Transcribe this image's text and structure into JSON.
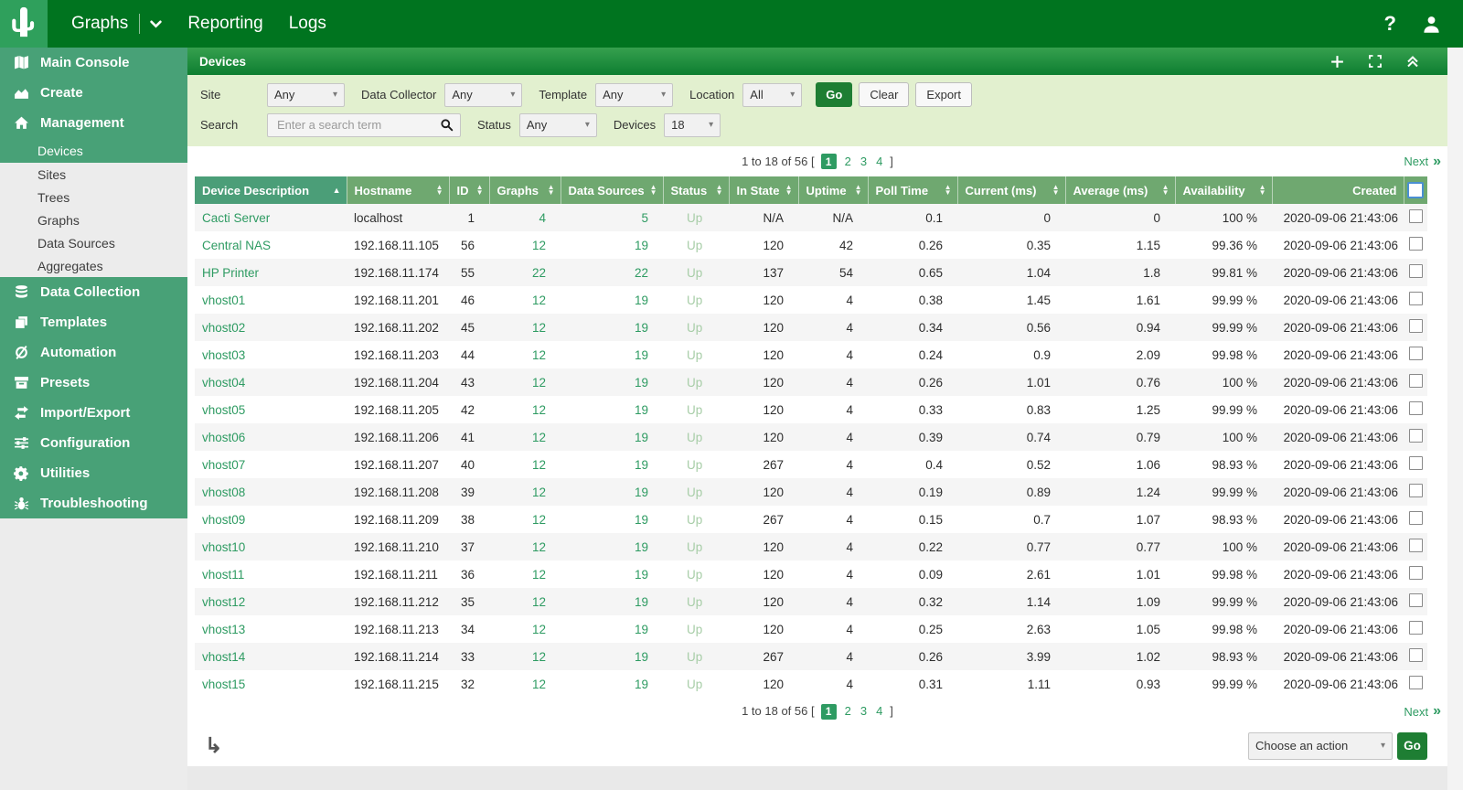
{
  "colors": {
    "navbar_green": "#00741f",
    "logo_green": "#2fa05c",
    "sidebar_green": "#48a177",
    "panel_top": "#36a04e",
    "panel_bottom": "#0e7e31",
    "filter_bg": "#e2f0cf",
    "table_header_green": "#6fa870",
    "table_header_sorted": "#4b9e78",
    "accent_green": "#2e9b62",
    "status_up": "#a7cda7",
    "go_green": "#1e7e33"
  },
  "navbar": {
    "tabs": [
      "Graphs",
      "Reporting",
      "Logs"
    ],
    "help_glyph": "?"
  },
  "sidebar": {
    "items": [
      {
        "label": "Main Console",
        "icon": "map-icon",
        "type": "section"
      },
      {
        "label": "Create",
        "icon": "area-chart-icon",
        "type": "section"
      },
      {
        "label": "Management",
        "icon": "home-icon",
        "type": "section"
      },
      {
        "label": "Devices",
        "type": "sub",
        "selected": true
      },
      {
        "label": "Sites",
        "type": "sub"
      },
      {
        "label": "Trees",
        "type": "sub"
      },
      {
        "label": "Graphs",
        "type": "sub"
      },
      {
        "label": "Data Sources",
        "type": "sub"
      },
      {
        "label": "Aggregates",
        "type": "sub"
      },
      {
        "label": "Data Collection",
        "icon": "database-icon",
        "type": "section"
      },
      {
        "label": "Templates",
        "icon": "layers-icon",
        "type": "section"
      },
      {
        "label": "Automation",
        "icon": "automation-icon",
        "type": "section"
      },
      {
        "label": "Presets",
        "icon": "archive-icon",
        "type": "section"
      },
      {
        "label": "Import/Export",
        "icon": "import-export-icon",
        "type": "section"
      },
      {
        "label": "Configuration",
        "icon": "sliders-icon",
        "type": "section"
      },
      {
        "label": "Utilities",
        "icon": "gears-icon",
        "type": "section"
      },
      {
        "label": "Troubleshooting",
        "icon": "bug-icon",
        "type": "section"
      }
    ]
  },
  "panel": {
    "title": "Devices",
    "filters": {
      "row1": [
        {
          "label": "Site",
          "value": "Any"
        },
        {
          "label": "Data Collector",
          "value": "Any"
        },
        {
          "label": "Template",
          "value": "Any"
        },
        {
          "label": "Location",
          "value": "All"
        }
      ],
      "buttons": {
        "go": "Go",
        "clear": "Clear",
        "export": "Export"
      },
      "search": {
        "label": "Search",
        "placeholder": "Enter a search term"
      },
      "status": {
        "label": "Status",
        "value": "Any"
      },
      "devices": {
        "label": "Devices",
        "value": "18"
      }
    }
  },
  "pagination": {
    "prefix": "1 to 18 of 56 [",
    "pages": [
      "1",
      "2",
      "3",
      "4"
    ],
    "current": "1",
    "suffix": "]",
    "next": "Next",
    "next_glyph": "»"
  },
  "table": {
    "columns": [
      {
        "key": "description",
        "label": "Device Description",
        "sort": "asc",
        "align": "left",
        "style": "link"
      },
      {
        "key": "hostname",
        "label": "Hostname",
        "sort": "both",
        "align": "left"
      },
      {
        "key": "id",
        "label": "ID",
        "sort": "both",
        "align": "right"
      },
      {
        "key": "graphs",
        "label": "Graphs",
        "sort": "both",
        "align": "right",
        "style": "link"
      },
      {
        "key": "data_sources",
        "label": "Data Sources",
        "sort": "both",
        "align": "right",
        "style": "link"
      },
      {
        "key": "status",
        "label": "Status",
        "sort": "both",
        "align": "left",
        "style": "status"
      },
      {
        "key": "in_state",
        "label": "In State",
        "sort": "both",
        "align": "right"
      },
      {
        "key": "uptime",
        "label": "Uptime",
        "sort": "both",
        "align": "right"
      },
      {
        "key": "poll_time",
        "label": "Poll Time",
        "sort": "both",
        "align": "right"
      },
      {
        "key": "current_ms",
        "label": "Current (ms)",
        "sort": "both",
        "align": "right"
      },
      {
        "key": "average_ms",
        "label": "Average (ms)",
        "sort": "both",
        "align": "right"
      },
      {
        "key": "availability",
        "label": "Availability",
        "sort": "both",
        "align": "right"
      },
      {
        "key": "created",
        "label": "Created",
        "sort": "none",
        "align": "right"
      }
    ],
    "rows": [
      {
        "description": "Cacti Server",
        "hostname": "localhost",
        "id": "1",
        "graphs": "4",
        "data_sources": "5",
        "status": "Up",
        "in_state": "N/A",
        "uptime": "N/A",
        "poll_time": "0.1",
        "current_ms": "0",
        "average_ms": "0",
        "availability": "100 %",
        "created": "2020-09-06 21:43:06"
      },
      {
        "description": "Central NAS",
        "hostname": "192.168.11.105",
        "id": "56",
        "graphs": "12",
        "data_sources": "19",
        "status": "Up",
        "in_state": "120",
        "uptime": "42",
        "poll_time": "0.26",
        "current_ms": "0.35",
        "average_ms": "1.15",
        "availability": "99.36 %",
        "created": "2020-09-06 21:43:06"
      },
      {
        "description": "HP Printer",
        "hostname": "192.168.11.174",
        "id": "55",
        "graphs": "22",
        "data_sources": "22",
        "status": "Up",
        "in_state": "137",
        "uptime": "54",
        "poll_time": "0.65",
        "current_ms": "1.04",
        "average_ms": "1.8",
        "availability": "99.81 %",
        "created": "2020-09-06 21:43:06"
      },
      {
        "description": "vhost01",
        "hostname": "192.168.11.201",
        "id": "46",
        "graphs": "12",
        "data_sources": "19",
        "status": "Up",
        "in_state": "120",
        "uptime": "4",
        "poll_time": "0.38",
        "current_ms": "1.45",
        "average_ms": "1.61",
        "availability": "99.99 %",
        "created": "2020-09-06 21:43:06"
      },
      {
        "description": "vhost02",
        "hostname": "192.168.11.202",
        "id": "45",
        "graphs": "12",
        "data_sources": "19",
        "status": "Up",
        "in_state": "120",
        "uptime": "4",
        "poll_time": "0.34",
        "current_ms": "0.56",
        "average_ms": "0.94",
        "availability": "99.99 %",
        "created": "2020-09-06 21:43:06"
      },
      {
        "description": "vhost03",
        "hostname": "192.168.11.203",
        "id": "44",
        "graphs": "12",
        "data_sources": "19",
        "status": "Up",
        "in_state": "120",
        "uptime": "4",
        "poll_time": "0.24",
        "current_ms": "0.9",
        "average_ms": "2.09",
        "availability": "99.98 %",
        "created": "2020-09-06 21:43:06"
      },
      {
        "description": "vhost04",
        "hostname": "192.168.11.204",
        "id": "43",
        "graphs": "12",
        "data_sources": "19",
        "status": "Up",
        "in_state": "120",
        "uptime": "4",
        "poll_time": "0.26",
        "current_ms": "1.01",
        "average_ms": "0.76",
        "availability": "100 %",
        "created": "2020-09-06 21:43:06"
      },
      {
        "description": "vhost05",
        "hostname": "192.168.11.205",
        "id": "42",
        "graphs": "12",
        "data_sources": "19",
        "status": "Up",
        "in_state": "120",
        "uptime": "4",
        "poll_time": "0.33",
        "current_ms": "0.83",
        "average_ms": "1.25",
        "availability": "99.99 %",
        "created": "2020-09-06 21:43:06"
      },
      {
        "description": "vhost06",
        "hostname": "192.168.11.206",
        "id": "41",
        "graphs": "12",
        "data_sources": "19",
        "status": "Up",
        "in_state": "120",
        "uptime": "4",
        "poll_time": "0.39",
        "current_ms": "0.74",
        "average_ms": "0.79",
        "availability": "100 %",
        "created": "2020-09-06 21:43:06"
      },
      {
        "description": "vhost07",
        "hostname": "192.168.11.207",
        "id": "40",
        "graphs": "12",
        "data_sources": "19",
        "status": "Up",
        "in_state": "267",
        "uptime": "4",
        "poll_time": "0.4",
        "current_ms": "0.52",
        "average_ms": "1.06",
        "availability": "98.93 %",
        "created": "2020-09-06 21:43:06"
      },
      {
        "description": "vhost08",
        "hostname": "192.168.11.208",
        "id": "39",
        "graphs": "12",
        "data_sources": "19",
        "status": "Up",
        "in_state": "120",
        "uptime": "4",
        "poll_time": "0.19",
        "current_ms": "0.89",
        "average_ms": "1.24",
        "availability": "99.99 %",
        "created": "2020-09-06 21:43:06"
      },
      {
        "description": "vhost09",
        "hostname": "192.168.11.209",
        "id": "38",
        "graphs": "12",
        "data_sources": "19",
        "status": "Up",
        "in_state": "267",
        "uptime": "4",
        "poll_time": "0.15",
        "current_ms": "0.7",
        "average_ms": "1.07",
        "availability": "98.93 %",
        "created": "2020-09-06 21:43:06"
      },
      {
        "description": "vhost10",
        "hostname": "192.168.11.210",
        "id": "37",
        "graphs": "12",
        "data_sources": "19",
        "status": "Up",
        "in_state": "120",
        "uptime": "4",
        "poll_time": "0.22",
        "current_ms": "0.77",
        "average_ms": "0.77",
        "availability": "100 %",
        "created": "2020-09-06 21:43:06"
      },
      {
        "description": "vhost11",
        "hostname": "192.168.11.211",
        "id": "36",
        "graphs": "12",
        "data_sources": "19",
        "status": "Up",
        "in_state": "120",
        "uptime": "4",
        "poll_time": "0.09",
        "current_ms": "2.61",
        "average_ms": "1.01",
        "availability": "99.98 %",
        "created": "2020-09-06 21:43:06"
      },
      {
        "description": "vhost12",
        "hostname": "192.168.11.212",
        "id": "35",
        "graphs": "12",
        "data_sources": "19",
        "status": "Up",
        "in_state": "120",
        "uptime": "4",
        "poll_time": "0.32",
        "current_ms": "1.14",
        "average_ms": "1.09",
        "availability": "99.99 %",
        "created": "2020-09-06 21:43:06"
      },
      {
        "description": "vhost13",
        "hostname": "192.168.11.213",
        "id": "34",
        "graphs": "12",
        "data_sources": "19",
        "status": "Up",
        "in_state": "120",
        "uptime": "4",
        "poll_time": "0.25",
        "current_ms": "2.63",
        "average_ms": "1.05",
        "availability": "99.98 %",
        "created": "2020-09-06 21:43:06"
      },
      {
        "description": "vhost14",
        "hostname": "192.168.11.214",
        "id": "33",
        "graphs": "12",
        "data_sources": "19",
        "status": "Up",
        "in_state": "267",
        "uptime": "4",
        "poll_time": "0.26",
        "current_ms": "3.99",
        "average_ms": "1.02",
        "availability": "98.93 %",
        "created": "2020-09-06 21:43:06"
      },
      {
        "description": "vhost15",
        "hostname": "192.168.11.215",
        "id": "32",
        "graphs": "12",
        "data_sources": "19",
        "status": "Up",
        "in_state": "120",
        "uptime": "4",
        "poll_time": "0.31",
        "current_ms": "1.11",
        "average_ms": "0.93",
        "availability": "99.99 %",
        "created": "2020-09-06 21:43:06"
      }
    ]
  },
  "footer": {
    "action_label": "Choose an action",
    "go": "Go"
  }
}
